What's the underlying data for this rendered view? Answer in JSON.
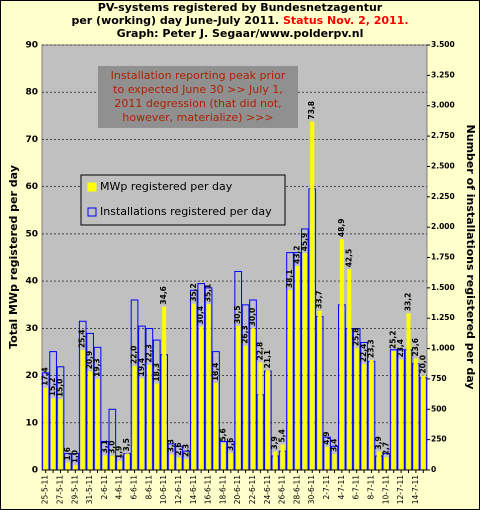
{
  "chart_data": {
    "type": "bar",
    "title": [
      "PV-systems registered by Bundesnetzagentur",
      "per (working) day June-July 2011.",
      "Status Nov. 2, 2011.",
      "Graph: Peter J. Segaar/www.polderpv.nl"
    ],
    "ylabel": "Total MWp registered per day",
    "y2label": "Number of installations registered per day",
    "annotation": [
      "Installation reporting peak prior",
      "to  expected June 30 >> July 1,",
      "2011 degression (that did not,",
      "however,  materialize) >>>"
    ],
    "categories": [
      "25-5-11",
      null,
      "27-5-11",
      null,
      "29-5-11",
      null,
      "31-5-11",
      null,
      "2-6-11",
      null,
      "4-6-11",
      null,
      "6-6-11",
      null,
      "8-6-11",
      null,
      "10-6-11",
      null,
      "12-6-11",
      null,
      "14-6-11",
      null,
      "16-6-11",
      null,
      "18-6-11",
      null,
      "20-6-11",
      null,
      "22-6-11",
      null,
      "24-6-11",
      null,
      "26-6-11",
      null,
      "28-6-11",
      null,
      "30-6-11",
      null,
      "2-7-11",
      null,
      "4-7-11",
      null,
      "6-7-11",
      null,
      "8-7-11",
      null,
      "10-7-11",
      null,
      "12-7-11",
      null,
      "14-7-11",
      null
    ],
    "series": [
      {
        "name": "Installations registered per day",
        "color": "#0000ff",
        "axis": "y2",
        "values": [
          800,
          975,
          850,
          135,
          135,
          1225,
          1125,
          1010,
          235,
          500,
          115,
          135,
          1400,
          1185,
          1165,
          1070,
          950,
          215,
          195,
          155,
          1480,
          1535,
          1500,
          975,
          235,
          235,
          1635,
          1360,
          1400,
          620,
          815,
          115,
          155,
          1790,
          1790,
          1985,
          2315,
          1265,
          270,
          195,
          1360,
          1165,
          1165,
          1050,
          895,
          115,
          135,
          990,
          990,
          990,
          875,
          760
        ]
      },
      {
        "name": "MWp registered per day",
        "color": "#ffff00",
        "values": [
          17.4,
          15.2,
          15.0,
          1.6,
          1.0,
          25.4,
          20.9,
          19.3,
          3.1,
          3.0,
          1.9,
          3.5,
          22.0,
          19.4,
          22.3,
          18.3,
          34.6,
          3.3,
          2.6,
          2.3,
          35.2,
          30.4,
          35.1,
          18.4,
          5.6,
          3.6,
          30.5,
          26.3,
          30.0,
          22.8,
          21.1,
          3.9,
          5.4,
          38.1,
          43.2,
          45.9,
          73.8,
          33.7,
          4.9,
          3.4,
          48.9,
          42.5,
          25.8,
          22.4,
          23.3,
          3.9,
          2.7,
          25.2,
          23.4,
          33.2,
          23.6,
          20.0
        ],
        "value_labels": [
          "17,4",
          "15,2",
          "15,0",
          "1,6",
          "1,0",
          "25,4",
          "20,9",
          "19,3",
          "3,1",
          "3,0",
          "1,9",
          "3,5",
          "22,0",
          "19,4",
          "22,3",
          "18,3",
          "34,6",
          "3,3",
          "2,6",
          "2,3",
          "35,2",
          "30,4",
          "35,1",
          "18,4",
          "5,6",
          "3,6",
          "30,5",
          "26,3",
          "30,0",
          "22,8",
          "21,1",
          "3,9",
          "5,4",
          "38,1",
          "43,2",
          "45,9",
          "73,8",
          "33,7",
          "4,9",
          "3,4",
          "48,9",
          "42,5",
          "25,8",
          "22,4",
          "23,3",
          "3,9",
          "2,7",
          "25,2",
          "23,4",
          "33,2",
          "23,6",
          "20,0"
        ]
      }
    ],
    "ylim": [
      0,
      90
    ],
    "yticks": [
      0,
      10,
      20,
      30,
      40,
      50,
      60,
      70,
      80,
      90
    ],
    "y2lim": [
      0,
      3500
    ],
    "y2ticks": [
      0,
      250,
      500,
      750,
      {
        "value": 1000,
        "label": "1.000"
      },
      {
        "value": 1250,
        "label": "1.250"
      },
      {
        "value": 1500,
        "label": "1.500"
      },
      {
        "value": 1750,
        "label": "1.750"
      },
      {
        "value": 2000,
        "label": "2.000"
      },
      {
        "value": 2250,
        "label": "2.250"
      },
      {
        "value": 2500,
        "label": "2.500"
      },
      {
        "value": 2750,
        "label": "2.750"
      },
      {
        "value": 3000,
        "label": "3.000"
      },
      {
        "value": 3250,
        "label": "3.250"
      },
      {
        "value": 3500,
        "label": "3.500"
      }
    ],
    "grid": true
  }
}
